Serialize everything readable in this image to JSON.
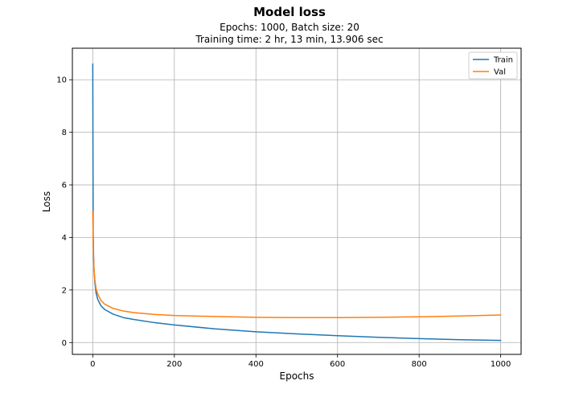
{
  "chart_data": {
    "type": "line",
    "title": "Model loss",
    "subtitle_lines": [
      "Epochs: 1000, Batch size: 20",
      "Training time: 2 hr, 13 min, 13.906 sec"
    ],
    "xlabel": "Epochs",
    "ylabel": "Loss",
    "xlim": [
      -50,
      1050
    ],
    "ylim": [
      -0.45,
      11.2
    ],
    "xticks": [
      0,
      200,
      400,
      600,
      800,
      1000
    ],
    "yticks": [
      0,
      2,
      4,
      6,
      8,
      10
    ],
    "grid": true,
    "legend_position": "top-right",
    "series": [
      {
        "name": "Train",
        "color": "#1f77b4",
        "x": [
          0,
          1,
          2,
          3,
          5,
          8,
          12,
          20,
          30,
          50,
          75,
          100,
          150,
          200,
          300,
          400,
          500,
          600,
          700,
          800,
          900,
          1000
        ],
        "y": [
          10.6,
          4.2,
          3.3,
          2.8,
          2.3,
          1.9,
          1.65,
          1.4,
          1.25,
          1.08,
          0.95,
          0.88,
          0.76,
          0.67,
          0.52,
          0.41,
          0.33,
          0.26,
          0.2,
          0.15,
          0.11,
          0.08
        ]
      },
      {
        "name": "Val",
        "color": "#ff7f0e",
        "x": [
          0,
          1,
          2,
          3,
          5,
          8,
          12,
          20,
          30,
          50,
          75,
          100,
          150,
          200,
          300,
          400,
          500,
          600,
          700,
          800,
          900,
          1000
        ],
        "y": [
          5.0,
          3.9,
          3.2,
          2.8,
          2.4,
          2.05,
          1.85,
          1.6,
          1.45,
          1.3,
          1.2,
          1.14,
          1.07,
          1.03,
          0.99,
          0.96,
          0.95,
          0.95,
          0.96,
          0.98,
          1.01,
          1.05
        ]
      }
    ]
  }
}
